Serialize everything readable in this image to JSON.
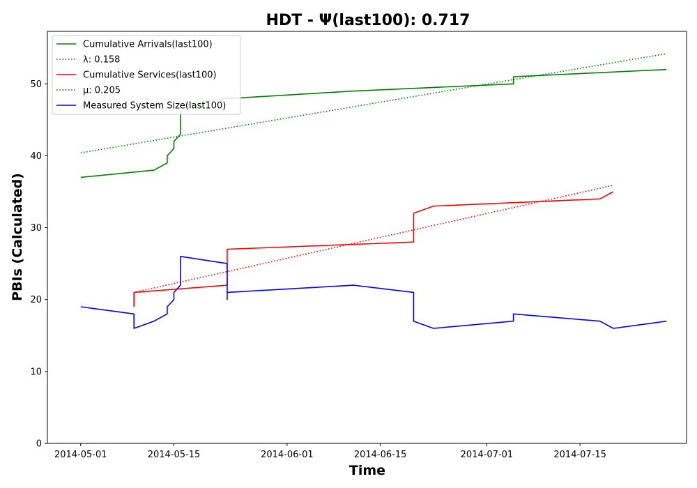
{
  "chart_data": {
    "type": "line",
    "title": "HDT -  Ψ(last100): 0.717",
    "xlabel": "Time",
    "ylabel": "PBIs (Calculated)",
    "xlim": [
      "2014-04-26",
      "2014-07-31"
    ],
    "ylim": [
      0,
      57.3
    ],
    "x_ticks": [
      "2014-05-01",
      "2014-05-15",
      "2014-06-01",
      "2014-06-15",
      "2014-07-01",
      "2014-07-15"
    ],
    "y_ticks": [
      0,
      10,
      20,
      30,
      40,
      50
    ],
    "grid": false,
    "legend_position": "upper-left",
    "colors": {
      "arrivals": "#008000",
      "services": "#ff0000",
      "system": "#0000ff"
    },
    "series": [
      {
        "name": "Cumulative Arrivals(last100)",
        "color": "#008000",
        "style": "solid",
        "points": [
          [
            "2014-05-01",
            37
          ],
          [
            "2014-05-12",
            38
          ],
          [
            "2014-05-14",
            39
          ],
          [
            "2014-05-14",
            40
          ],
          [
            "2014-05-15",
            41
          ],
          [
            "2014-05-15",
            42
          ],
          [
            "2014-05-16",
            43
          ],
          [
            "2014-05-16",
            47
          ],
          [
            "2014-05-23",
            48
          ],
          [
            "2014-05-24",
            48
          ],
          [
            "2014-06-11",
            49
          ],
          [
            "2014-07-05",
            50
          ],
          [
            "2014-07-05",
            51
          ],
          [
            "2014-07-28",
            52
          ]
        ]
      },
      {
        "name": "λ: 0.158",
        "color": "#008000",
        "style": "dotted",
        "points": [
          [
            "2014-05-01",
            40.4
          ],
          [
            "2014-07-28",
            54.2
          ]
        ]
      },
      {
        "name": "Cumulative Services(last100)",
        "color": "#ff0000",
        "style": "solid",
        "points": [
          [
            "2014-05-09",
            19
          ],
          [
            "2014-05-09",
            21
          ],
          [
            "2014-05-23",
            22
          ],
          [
            "2014-05-23",
            27
          ],
          [
            "2014-06-20",
            28
          ],
          [
            "2014-06-20",
            32
          ],
          [
            "2014-06-23",
            33
          ],
          [
            "2014-07-18",
            34
          ],
          [
            "2014-07-20",
            35
          ]
        ]
      },
      {
        "name": "μ: 0.205",
        "color": "#ff0000",
        "style": "dotted",
        "points": [
          [
            "2014-05-09",
            21
          ],
          [
            "2014-07-20",
            35.9
          ]
        ]
      },
      {
        "name": "Measured System Size(last100)",
        "color": "#0000ff",
        "style": "solid",
        "points": [
          [
            "2014-05-01",
            19
          ],
          [
            "2014-05-09",
            18
          ],
          [
            "2014-05-09",
            16
          ],
          [
            "2014-05-12",
            17
          ],
          [
            "2014-05-14",
            18
          ],
          [
            "2014-05-14",
            19
          ],
          [
            "2014-05-15",
            20
          ],
          [
            "2014-05-15",
            21
          ],
          [
            "2014-05-16",
            22
          ],
          [
            "2014-05-16",
            26
          ],
          [
            "2014-05-23",
            25
          ],
          [
            "2014-05-23",
            20
          ],
          [
            "2014-05-23",
            21
          ],
          [
            "2014-06-11",
            22
          ],
          [
            "2014-06-20",
            21
          ],
          [
            "2014-06-20",
            17
          ],
          [
            "2014-06-23",
            16
          ],
          [
            "2014-07-05",
            17
          ],
          [
            "2014-07-05",
            18
          ],
          [
            "2014-07-18",
            17
          ],
          [
            "2014-07-20",
            16
          ],
          [
            "2014-07-28",
            17
          ]
        ]
      }
    ],
    "legend": [
      {
        "label": "Cumulative Arrivals(last100)",
        "color": "#008000",
        "style": "solid"
      },
      {
        "label": "λ: 0.158",
        "color": "#008000",
        "style": "dotted"
      },
      {
        "label": "Cumulative Services(last100)",
        "color": "#ff0000",
        "style": "solid"
      },
      {
        "label": "μ: 0.205",
        "color": "#ff0000",
        "style": "dotted"
      },
      {
        "label": "Measured System Size(last100)",
        "color": "#0000ff",
        "style": "solid"
      }
    ]
  }
}
